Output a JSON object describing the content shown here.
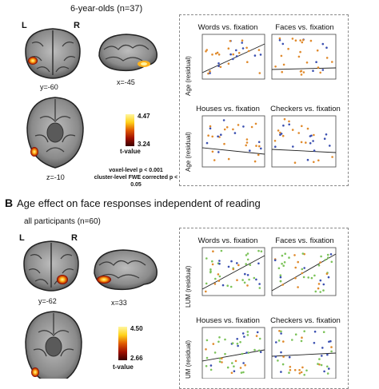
{
  "panel_a": {
    "title": "6-year-olds (n=37)",
    "left_label": "L",
    "right_label": "R",
    "coord_coronal": "y=-60",
    "coord_sagittal": "x=-45",
    "coord_axial": "z=-10",
    "colorbar_max": "4.47",
    "colorbar_min": "3.24",
    "colorbar_label": "t-value",
    "threshold_line1": "voxel-level p < 0.001",
    "threshold_line2": "cluster-level FWE corrected p < 0.05",
    "y_axis_label": "Age (residual)",
    "plots": [
      {
        "title": "Words vs. fixation"
      },
      {
        "title": "Faces vs. fixation"
      },
      {
        "title": "Houses vs. fixation"
      },
      {
        "title": "Checkers vs. fixation"
      }
    ]
  },
  "panel_b": {
    "letter": "B",
    "heading": "Age effect on face responses independent of reading",
    "title": "all participants (n=60)",
    "left_label": "L",
    "right_label": "R",
    "coord_coronal": "y=-62",
    "coord_sagittal": "x=33",
    "colorbar_max": "4.50",
    "colorbar_min": "2.66",
    "colorbar_label": "t-value",
    "y_axis_label": "LUM (residual)",
    "y_axis_label_partial": "UM (residual)",
    "plots": [
      {
        "title": "Words vs. fixation"
      },
      {
        "title": "Faces vs. fixation"
      },
      {
        "title": "Houses vs. fixation"
      },
      {
        "title": "Checkers vs. fixation"
      }
    ]
  },
  "colors": {
    "blue": "#3a4fb0",
    "orange": "#e08a2c",
    "green": "#7cc35a",
    "fit": "#333333",
    "activation_hot": "#ffd21a",
    "activation_dark": "#6b0000"
  }
}
